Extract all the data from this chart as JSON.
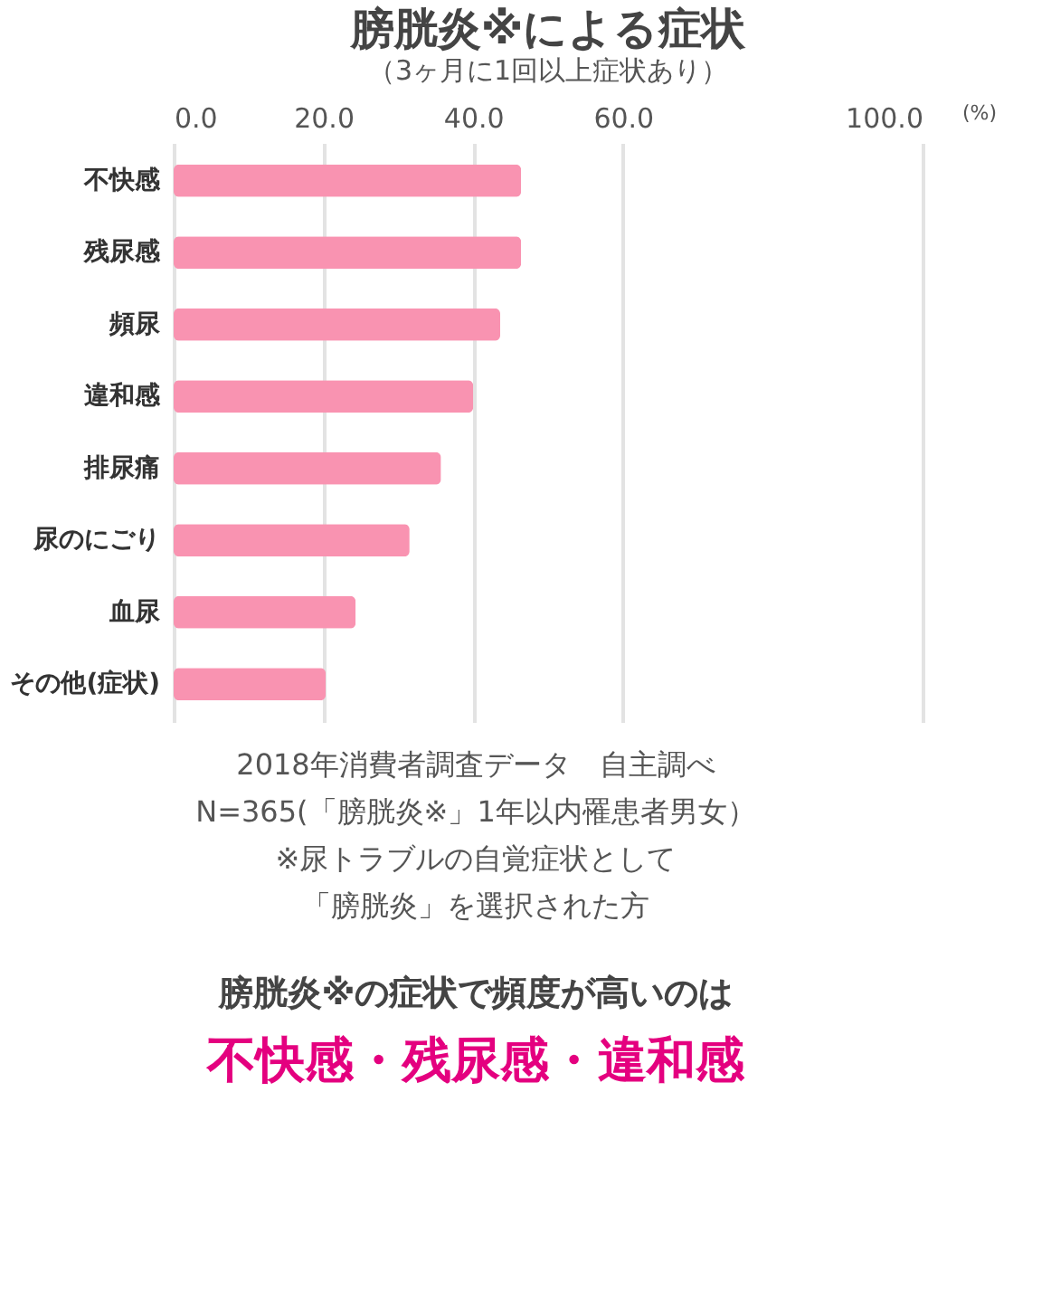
{
  "chart_data": {
    "type": "bar",
    "orientation": "horizontal",
    "title": "膀胱炎※による症状",
    "subtitle": "（3ヶ月に1回以上症状あり）",
    "xlabel": "(%)",
    "categories": [
      "不快感",
      "残尿感",
      "頻尿",
      "違和感",
      "排尿痛",
      "尿のにごり",
      "血尿",
      "その他(症状)"
    ],
    "series": [
      {
        "color": "#f993b1",
        "values": [
          46.4,
          46.4,
          43.6,
          40.0,
          35.7,
          31.5,
          24.3,
          20.3
        ]
      }
    ],
    "xlim": [
      0,
      100
    ],
    "xticks": [
      {
        "value": 0,
        "label": "0.0"
      },
      {
        "value": 20,
        "label": "20.0"
      },
      {
        "value": 40,
        "label": "40.0"
      },
      {
        "value": 60,
        "label": "60.0"
      },
      {
        "value": 100,
        "label": "100.0"
      }
    ],
    "grid": "x",
    "annotations": [
      "2018年消費者調査データ　自主調べ",
      "N=365(「膀胱炎※」1年以内罹患者男女）",
      "※尿トラブルの自覚症状として",
      "「膀胱炎」を選択された方",
      "膀胱炎※の症状で頻度が高いのは",
      "不快感・残尿感・違和感"
    ]
  }
}
